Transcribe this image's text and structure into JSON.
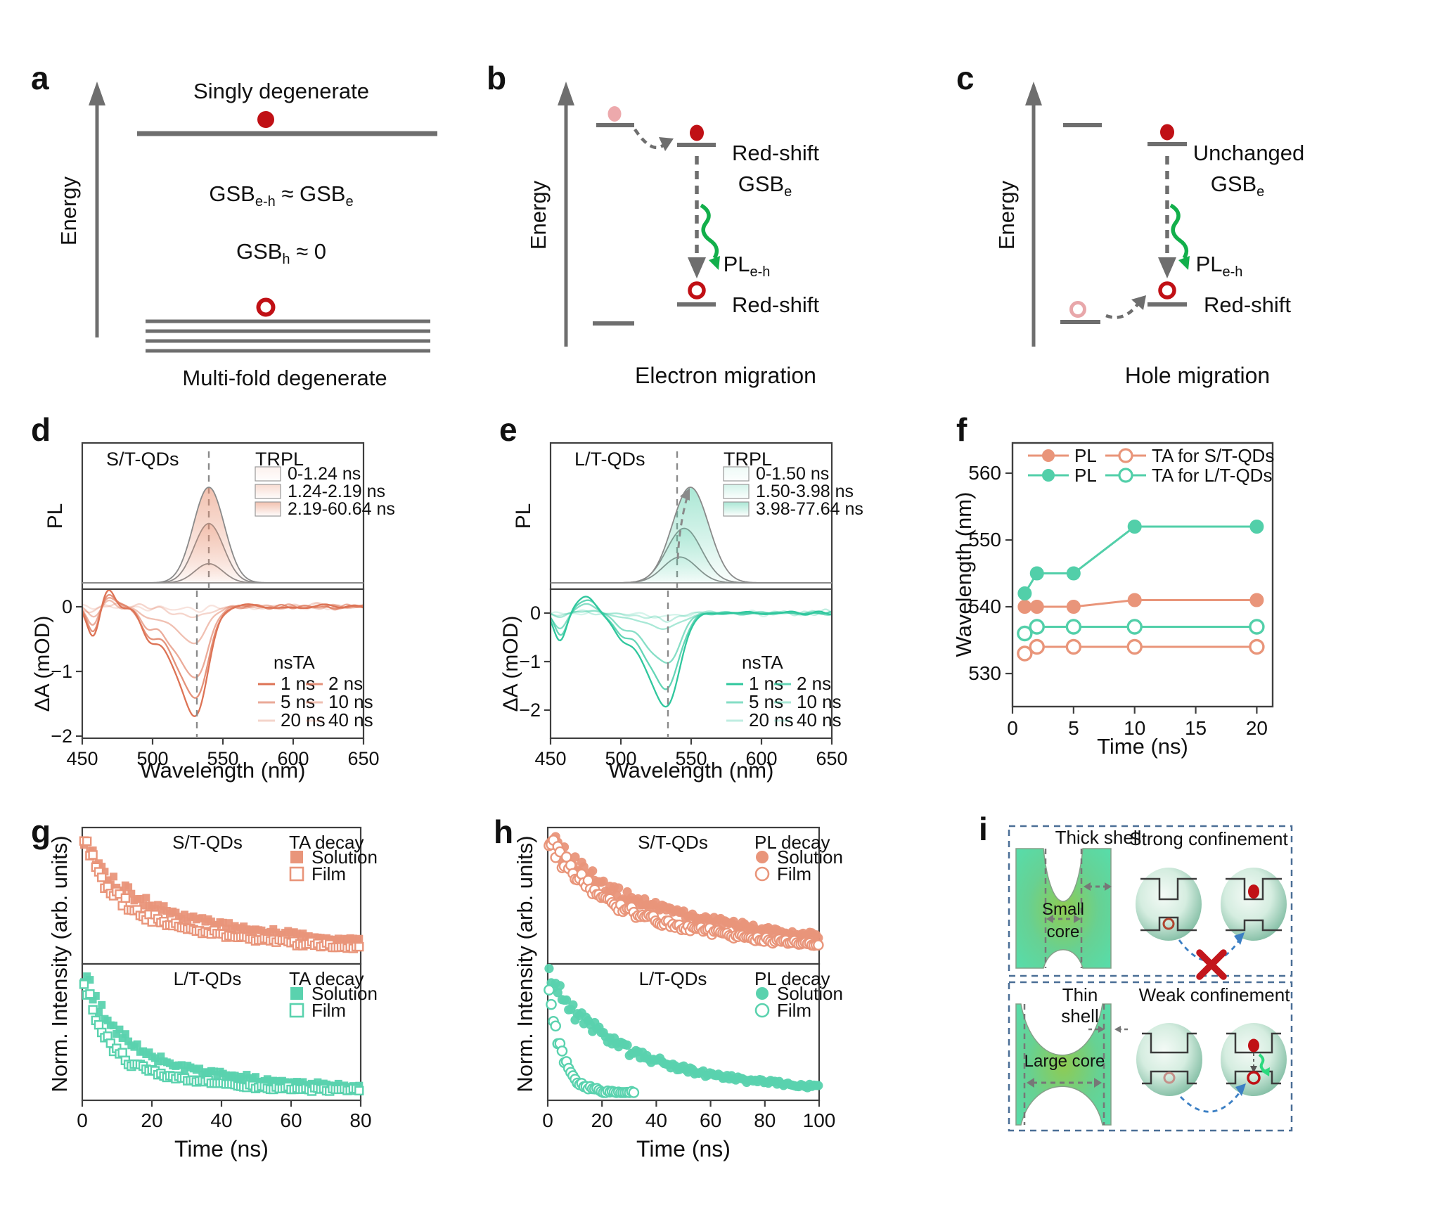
{
  "letters": {
    "a": "a",
    "b": "b",
    "c": "c",
    "d": "d",
    "e": "e",
    "f": "f",
    "g": "g",
    "h": "h",
    "i": "i"
  },
  "palette": {
    "salmon": "#E9957A",
    "salmon_dark": "#DD7355",
    "teal": "#52CFA9",
    "teal_dark": "#2FC79D",
    "red": "#C01015",
    "pink": "#EDA9AC",
    "green": "#12AF4B",
    "gray": "#6E6E6E",
    "blue_arrow": "#3B7FC4",
    "box_navy": "#4A6E96",
    "cross_red": "#C3161C"
  },
  "panel_a": {
    "energy_label": "Energy",
    "top_label": "Singly degenerate",
    "bottom_label": "Multi-fold degenerate",
    "eq1": {
      "t1": "GSB",
      "s1": "e-h",
      "t2": " ≈ GSB",
      "s2": "e"
    },
    "eq2": {
      "t1": "GSB",
      "s1": "h",
      "t2": " ≈ 0"
    }
  },
  "panel_b": {
    "energy_label": "Energy",
    "redshift_top": "Red-shift",
    "gsb": {
      "t1": "GSB",
      "s1": "e"
    },
    "pl": {
      "t1": "PL",
      "s1": "e-h"
    },
    "redshift_bottom": "Red-shift",
    "caption": "Electron migration"
  },
  "panel_c": {
    "energy_label": "Energy",
    "unchanged": "Unchanged",
    "gsb": {
      "t1": "GSB",
      "s1": "e"
    },
    "pl": {
      "t1": "PL",
      "s1": "e-h"
    },
    "redshift": "Red-shift",
    "caption": "Hole migration"
  },
  "panel_i": {
    "thick_shell": "Thick shell",
    "strong": "Strong confinement",
    "small_core_1": "Small",
    "small_core_2": "core",
    "thin_1": "Thin",
    "thin_2": "shell",
    "weak": "Weak confinement",
    "large_core": "Large core"
  },
  "chart_data": [
    {
      "id": "d",
      "type": "spectra",
      "title": "S/T-QDs",
      "color": "#DD7355",
      "fill_color": "#E88F6F",
      "x": {
        "label": "Wavelength (nm)",
        "ticks": [
          450,
          500,
          550,
          600,
          650
        ],
        "lim": [
          450,
          650
        ]
      },
      "top": {
        "ylabel": "PL",
        "legend_title": "TRPL",
        "legend": [
          "0-1.24 ns",
          "1.24-2.19 ns",
          "2.19-60.64 ns"
        ],
        "peaks": [
          {
            "c": 540,
            "h": 0.2,
            "s": 10
          },
          {
            "c": 540,
            "h": 0.62,
            "s": 10.5
          },
          {
            "c": 540,
            "h": 1.0,
            "s": 11
          }
        ],
        "fill_alphas": [
          0.12,
          0.32,
          0.55
        ],
        "dash_x": 540,
        "arrow": false
      },
      "bottom": {
        "ylabel": "ΔA (mOD)",
        "legend_title": "nsTA",
        "legend": [
          "1 ns",
          "2 ns",
          "5 ns",
          "10 ns",
          "20 ns",
          "40 ns"
        ],
        "features": [
          [
            0.3,
            458,
            4.2
          ],
          [
            -0.17,
            469,
            4.5
          ],
          [
            0.28,
            497,
            6
          ],
          [
            0.5,
            515,
            9
          ],
          [
            1.0,
            531.5,
            8.5
          ]
        ],
        "depths": [
          1.5,
          1.28,
          1.0,
          0.5,
          0.12,
          0.05
        ],
        "alphas": [
          1,
          0.78,
          0.6,
          0.45,
          0.3,
          0.2
        ],
        "dash_x": 531.5,
        "yticks": [
          0,
          -1,
          -2
        ],
        "ytick_labels": [
          "0",
          "−1",
          "−2"
        ]
      }
    },
    {
      "id": "e",
      "type": "spectra",
      "title": "L/T-QDs",
      "color": "#2FC79D",
      "fill_color": "#56CFAA",
      "x": {
        "label": "Wavelength (nm)",
        "ticks": [
          450,
          500,
          550,
          600,
          650
        ],
        "lim": [
          450,
          650
        ]
      },
      "top": {
        "ylabel": "PL",
        "legend_title": "TRPL",
        "legend": [
          "0-1.50 ns",
          "1.50-3.98 ns",
          "3.98-77.64 ns"
        ],
        "peaks": [
          {
            "c": 542,
            "h": 0.27,
            "s": 12
          },
          {
            "c": 545,
            "h": 0.57,
            "s": 12.5
          },
          {
            "c": 549.5,
            "h": 1.0,
            "s": 13
          }
        ],
        "fill_alphas": [
          0.1,
          0.26,
          0.5
        ],
        "dash_x": 540,
        "arrow": true
      },
      "bottom": {
        "ylabel": "ΔA (mOD)",
        "legend_title": "nsTA",
        "legend": [
          "1 ns",
          "2 ns",
          "5 ns",
          "10 ns",
          "20 ns",
          "40 ns"
        ],
        "features": [
          [
            0.3,
            457,
            4.5
          ],
          [
            -0.2,
            475,
            6
          ],
          [
            0.25,
            500,
            6
          ],
          [
            0.45,
            517,
            9
          ],
          [
            1.0,
            533.5,
            9
          ]
        ],
        "depths": [
          1.75,
          1.4,
          0.95,
          0.3,
          0.12,
          0.06
        ],
        "alphas": [
          1,
          0.75,
          0.58,
          0.42,
          0.3,
          0.2
        ],
        "dash_x": 533.5,
        "yticks": [
          0,
          -1,
          -2
        ],
        "ytick_labels": [
          "0",
          "−1",
          "−2"
        ]
      }
    },
    {
      "id": "f",
      "type": "line-marker",
      "xlabel": "Time (ns)",
      "ylabel": "Wavelength (nm)",
      "xticks": [
        0,
        5,
        10,
        15,
        20
      ],
      "yticks": [
        530,
        540,
        550,
        560
      ],
      "xlim": [
        0,
        21.3
      ],
      "ylim": [
        525,
        564
      ],
      "x": [
        1,
        2,
        5,
        10,
        20
      ],
      "series": [
        {
          "name": "PL",
          "group": "S/T-QDs",
          "marker": "filled",
          "color": "#E9957A",
          "values": [
            540,
            540,
            540,
            541,
            541
          ]
        },
        {
          "name": "TA",
          "group": "S/T-QDs",
          "marker": "open",
          "color": "#E9957A",
          "values": [
            533,
            534,
            534,
            534,
            534
          ]
        },
        {
          "name": "PL",
          "group": "L/T-QDs",
          "marker": "filled",
          "color": "#52CFA9",
          "values": [
            542,
            545,
            545,
            552,
            552
          ]
        },
        {
          "name": "TA",
          "group": "L/T-QDs",
          "marker": "open",
          "color": "#52CFA9",
          "values": [
            536,
            537,
            537,
            537,
            537
          ]
        }
      ],
      "legend": [
        [
          "PL",
          "TA for S/T-QDs"
        ],
        [
          "PL",
          "TA for L/T-QDs"
        ]
      ]
    },
    {
      "id": "g",
      "type": "scatter-decay",
      "marker": "square",
      "xlabel": "Time (ns)",
      "ylabel": "Norm. Intensity (arb. units)",
      "xticks": [
        0,
        20,
        40,
        60,
        80
      ],
      "xlim": 80,
      "step": 0.85,
      "panels": [
        {
          "label": "S/T-QDs",
          "legend_title": "TA decay",
          "color": "#E9957A",
          "series": [
            {
              "name": "Solution",
              "style": "filled",
              "a": [
                0.5,
                0.5
              ],
              "tau": [
                10,
                60
              ]
            },
            {
              "name": "Film",
              "style": "open",
              "a": [
                0.55,
                0.45
              ],
              "tau": [
                7,
                45
              ]
            }
          ]
        },
        {
          "label": "L/T-QDs",
          "legend_title": "TA decay",
          "color": "#5AD2AE",
          "series": [
            {
              "name": "Solution",
              "style": "filled",
              "a": [
                0.6,
                0.4
              ],
              "tau": [
                9,
                40
              ]
            },
            {
              "name": "Film",
              "style": "open",
              "a": [
                0.7,
                0.3
              ],
              "tau": [
                6,
                30
              ]
            }
          ]
        }
      ]
    },
    {
      "id": "h",
      "type": "scatter-decay",
      "marker": "circle",
      "xlabel": "Time (ns)",
      "ylabel": "Norm. Intensity (arb. units)",
      "xticks": [
        0,
        20,
        40,
        60,
        80,
        100
      ],
      "xlim": 100,
      "step": 0.8,
      "panels": [
        {
          "label": "S/T-QDs",
          "legend_title": "PL decay",
          "color": "#E9957A",
          "series": [
            {
              "name": "Solution",
              "style": "filled",
              "a": [
                0.35,
                0.65
              ],
              "tau": [
                15,
                75
              ]
            },
            {
              "name": "Film",
              "style": "open",
              "a": [
                0.4,
                0.6
              ],
              "tau": [
                12,
                55
              ]
            }
          ]
        },
        {
          "label": "L/T-QDs",
          "legend_title": "PL decay",
          "color": "#5AD2AE",
          "series": [
            {
              "name": "Solution",
              "style": "filled",
              "a": [
                0.25,
                0.75
              ],
              "tau": [
                10,
                38
              ]
            },
            {
              "name": "Film",
              "style": "open",
              "a": [
                0.97,
                0.03
              ],
              "tau": [
                4.5,
                15
              ],
              "tmax": 32
            }
          ]
        }
      ]
    }
  ]
}
